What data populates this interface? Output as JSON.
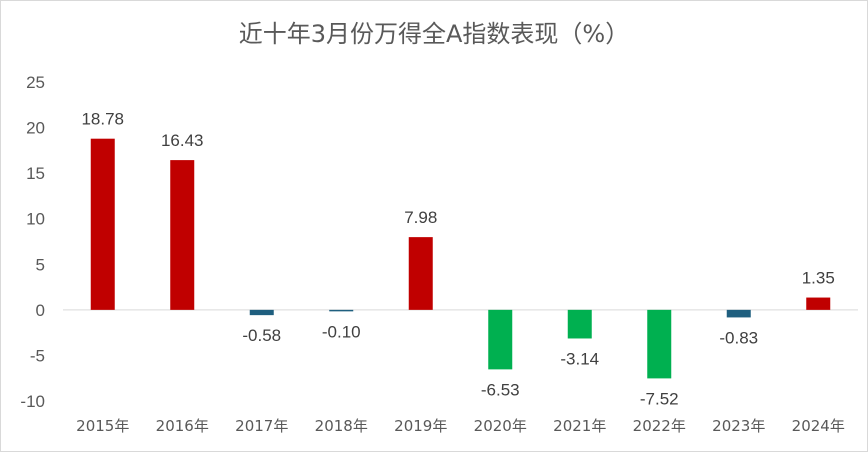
{
  "chart_data": {
    "type": "bar",
    "title": "近十年3月份万得全A指数表现（%）",
    "categories": [
      "2015年",
      "2016年",
      "2017年",
      "2018年",
      "2019年",
      "2020年",
      "2021年",
      "2022年",
      "2023年",
      "2024年"
    ],
    "values": [
      18.78,
      16.43,
      -0.58,
      -0.1,
      7.98,
      -6.53,
      -3.14,
      -7.52,
      -0.83,
      1.35
    ],
    "data_labels": [
      "18.78",
      "16.43",
      "-0.58",
      "-0.10",
      "7.98",
      "-6.53",
      "-3.14",
      "-7.52",
      "-0.83",
      "1.35"
    ],
    "colors": [
      "#c00000",
      "#c00000",
      "#1f5f7f",
      "#1f5f7f",
      "#c00000",
      "#00b050",
      "#00b050",
      "#00b050",
      "#1f5f7f",
      "#c00000"
    ],
    "yticks": [
      "25",
      "20",
      "15",
      "10",
      "5",
      "0",
      "-5",
      "-10"
    ],
    "ylim": [
      -10,
      25
    ],
    "grid": false,
    "legend": "none"
  }
}
